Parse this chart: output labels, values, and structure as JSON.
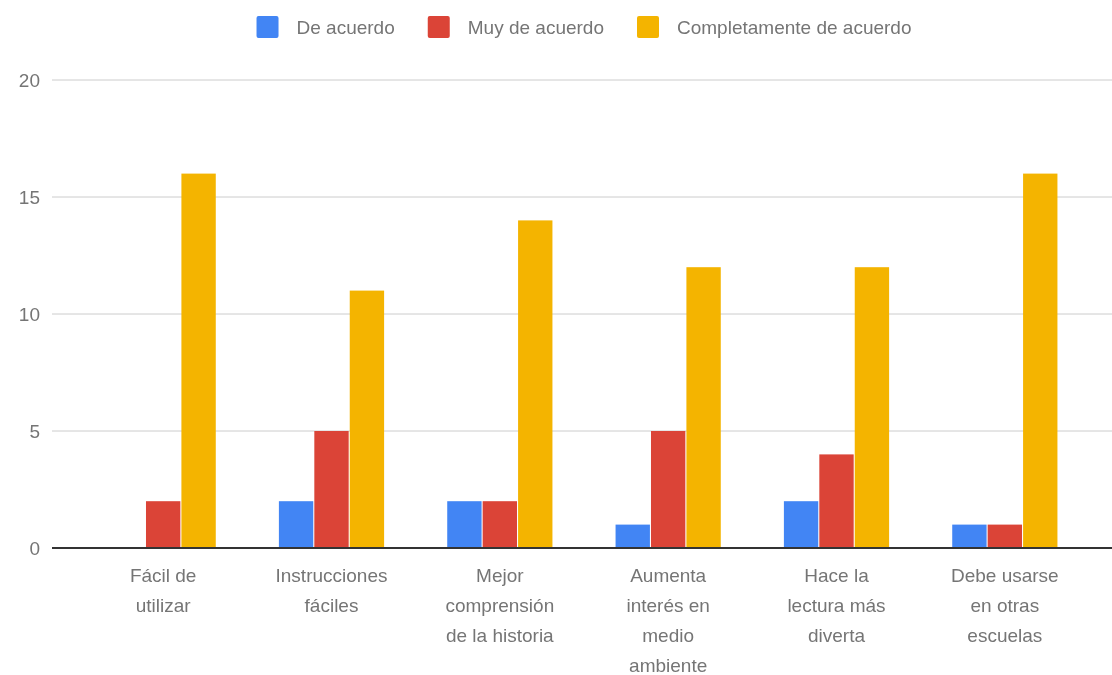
{
  "chart_data": {
    "type": "bar",
    "categories": [
      "Fácil de utilizar",
      "Instrucciones fáciles",
      "Mejor comprensión de la historia",
      "Aumenta interés en medio ambiente",
      "Hace la lectura más diverta",
      "Debe usarse en otras escuelas"
    ],
    "series": [
      {
        "name": "De acuerdo",
        "color": "#4285f4",
        "values": [
          0,
          2,
          2,
          1,
          2,
          1
        ]
      },
      {
        "name": "Muy de acuerdo",
        "color": "#db4437",
        "values": [
          2,
          5,
          2,
          5,
          4,
          1
        ]
      },
      {
        "name": "Completamente de acuerdo",
        "color": "#f4b400",
        "values": [
          16,
          11,
          14,
          12,
          12,
          16
        ]
      }
    ],
    "ylim": [
      0,
      20
    ],
    "yticks": [
      0,
      5,
      10,
      15,
      20
    ],
    "grid": "y",
    "legend": "top"
  }
}
